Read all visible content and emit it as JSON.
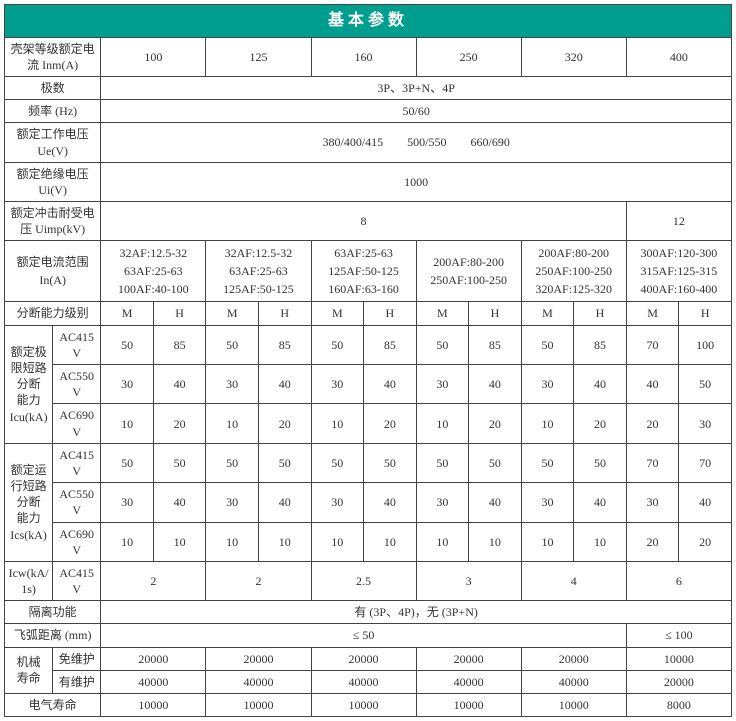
{
  "colors": {
    "header_bg": "#009e8e",
    "header_text": "#ffffff",
    "border": "#444444",
    "text": "#333333"
  },
  "title": "基本参数",
  "labels": {
    "frame_current": "壳架等级额定电\n流 Inm(A)",
    "poles": "极数",
    "freq": "频率 (Hz)",
    "ue": "额定工作电压\nUe(V)",
    "ui": "额定绝缘电压\nUi(V)",
    "uimp": "额定冲击耐受电\n压 Uimp(kV)",
    "in_range": "额定电流范围\nIn(A)",
    "break_class": "分断能力级别",
    "icu": "额定极\n限短路\n分断\n能力\nIcu(kA)",
    "ics": "额定运\n行短路\n分断\n能力\nIcs(kA)",
    "icw": "Icw(kA/1s)",
    "isolation": "隔离功能",
    "arc": "飞弧距离 (mm)",
    "mech_life": "机械\n寿命",
    "no_maint": "免维护",
    "with_maint": "有维护",
    "elec_life": "电气寿命"
  },
  "frame_currents": [
    "100",
    "125",
    "160",
    "250",
    "320",
    "400"
  ],
  "poles_value": "3P、3P+N、4P",
  "freq_value": "50/60",
  "ue_value": "380/400/415  500/550  660/690",
  "ui_value": "1000",
  "uimp_values": {
    "first5": "8",
    "last": "12"
  },
  "in_ranges": [
    "32AF:12.5-32\n63AF:25-63\n100AF:40-100",
    "32AF:12.5-32\n63AF:25-63\n125AF:50-125",
    "63AF:25-63\n125AF:50-125\n160AF:63-160",
    "200AF:80-200\n250AF:100-250",
    "200AF:80-200\n250AF:100-250\n320AF:125-320",
    "300AF:120-300\n315AF:125-315\n400AF:160-400"
  ],
  "class_letters": {
    "M": "M",
    "H": "H"
  },
  "voltage_rows": [
    "AC415V",
    "AC550V",
    "AC690V"
  ],
  "icu": {
    "AC415V": [
      [
        "50",
        "85"
      ],
      [
        "50",
        "85"
      ],
      [
        "50",
        "85"
      ],
      [
        "50",
        "85"
      ],
      [
        "50",
        "85"
      ],
      [
        "70",
        "100"
      ]
    ],
    "AC550V": [
      [
        "30",
        "40"
      ],
      [
        "30",
        "40"
      ],
      [
        "30",
        "40"
      ],
      [
        "30",
        "40"
      ],
      [
        "30",
        "40"
      ],
      [
        "40",
        "50"
      ]
    ],
    "AC690V": [
      [
        "10",
        "20"
      ],
      [
        "10",
        "20"
      ],
      [
        "10",
        "20"
      ],
      [
        "10",
        "20"
      ],
      [
        "10",
        "20"
      ],
      [
        "20",
        "30"
      ]
    ]
  },
  "ics": {
    "AC415V": [
      [
        "50",
        "50"
      ],
      [
        "50",
        "50"
      ],
      [
        "50",
        "50"
      ],
      [
        "50",
        "50"
      ],
      [
        "50",
        "50"
      ],
      [
        "70",
        "70"
      ]
    ],
    "AC550V": [
      [
        "30",
        "40"
      ],
      [
        "30",
        "40"
      ],
      [
        "30",
        "40"
      ],
      [
        "30",
        "40"
      ],
      [
        "30",
        "40"
      ],
      [
        "30",
        "40"
      ]
    ],
    "AC690V": [
      [
        "10",
        "10"
      ],
      [
        "10",
        "10"
      ],
      [
        "10",
        "10"
      ],
      [
        "10",
        "10"
      ],
      [
        "10",
        "10"
      ],
      [
        "20",
        "20"
      ]
    ]
  },
  "icw_voltage": "AC415V",
  "icw_values": [
    "2",
    "2",
    "2.5",
    "3",
    "4",
    "6"
  ],
  "isolation_value": "有 (3P、4P)，无 (3P+N)",
  "arc_values": {
    "first5": "≤ 50",
    "last": "≤ 100"
  },
  "mech_no_maint": [
    "20000",
    "20000",
    "20000",
    "20000",
    "20000",
    "10000"
  ],
  "mech_with_maint": [
    "40000",
    "40000",
    "40000",
    "40000",
    "40000",
    "20000"
  ],
  "elec_life": [
    "10000",
    "10000",
    "10000",
    "10000",
    "10000",
    "8000"
  ]
}
